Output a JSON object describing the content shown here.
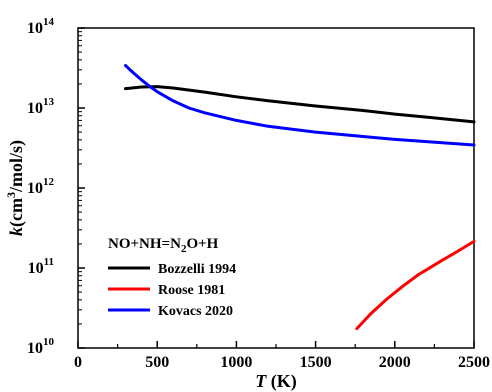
{
  "chart_data": {
    "type": "line",
    "title": "",
    "xlabel": "T (K)",
    "xlabel_parts": {
      "var": "T",
      "unit": " (K)"
    },
    "ylabel": "k(cm3/mol/s)",
    "ylabel_parts": {
      "var": "k",
      "open": "(cm",
      "sup": "3",
      "close": "/mol/s)"
    },
    "xlim": [
      0,
      2500
    ],
    "ylim": [
      10000000000,
      100000000000000
    ],
    "yscale": "log",
    "x_ticks": [
      0,
      500,
      1000,
      1500,
      2000,
      2500
    ],
    "x_tick_labels": [
      "0",
      "500",
      "1000",
      "1500",
      "2000",
      "2500"
    ],
    "y_ticks": [
      10000000000,
      100000000000,
      1000000000000,
      10000000000000,
      100000000000000
    ],
    "y_tick_labels": [
      {
        "base": "10",
        "exp": "10"
      },
      {
        "base": "10",
        "exp": "11"
      },
      {
        "base": "10",
        "exp": "12"
      },
      {
        "base": "10",
        "exp": "13"
      },
      {
        "base": "10",
        "exp": "14"
      }
    ],
    "grid": false,
    "legend_position": "bottom-left",
    "annotation": {
      "parts": [
        "NO+NH=N",
        "2",
        "O+H"
      ],
      "text": "NO+NH=N2O+H"
    },
    "series": [
      {
        "name": "Bozzelli 1994",
        "color": "#000000",
        "x": [
          300,
          400,
          500,
          600,
          800,
          1000,
          1200,
          1500,
          1800,
          2000,
          2200,
          2500
        ],
        "y": [
          17500000000000,
          18300000000000,
          18500000000000,
          17800000000000,
          15800000000000,
          13800000000000,
          12300000000000,
          10600000000000,
          9300000000000,
          8400000000000,
          7700000000000,
          6700000000000
        ]
      },
      {
        "name": "Roose 1981",
        "color": "#ff0000",
        "x": [
          1760,
          1850,
          1950,
          2050,
          2150,
          2200,
          2300,
          2400,
          2500
        ],
        "y": [
          17500000000,
          27000000000,
          41000000000,
          59000000000,
          83000000000,
          95000000000,
          125000000000,
          163000000000,
          215000000000
        ]
      },
      {
        "name": "Kovacs 2020",
        "color": "#0000ff",
        "x": [
          300,
          350,
          400,
          450,
          500,
          600,
          700,
          800,
          1000,
          1200,
          1500,
          1800,
          2000,
          2200,
          2500
        ],
        "y": [
          34000000000000,
          27500000000000,
          22500000000000,
          18800000000000,
          16000000000000,
          12300000000000,
          10000000000000,
          8700000000000,
          7000000000000,
          5900000000000,
          5000000000000,
          4400000000000,
          4050000000000,
          3800000000000,
          3450000000000
        ]
      }
    ]
  }
}
